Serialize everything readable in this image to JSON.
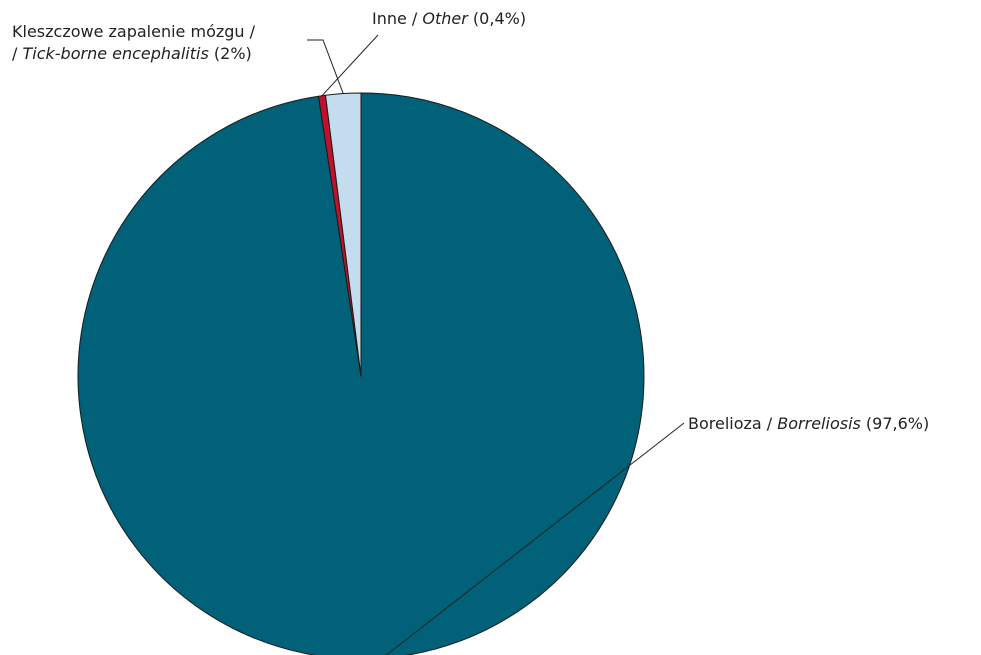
{
  "chart_data": {
    "type": "pie",
    "slices": [
      {
        "label_pl": "Borelioza",
        "label_en": "Borreliosis",
        "value": 97.6,
        "value_text": "97,6%",
        "color": "#006179"
      },
      {
        "label_pl": "Inne",
        "label_en": "Other",
        "value": 0.4,
        "value_text": "0,4%",
        "color": "#c0102e"
      },
      {
        "label_pl": "Kleszczowe zapalenie mózgu",
        "label_en": "Tick-borne encephalitis",
        "value": 2,
        "value_text": "2%",
        "color": "#c3dcee"
      }
    ]
  }
}
